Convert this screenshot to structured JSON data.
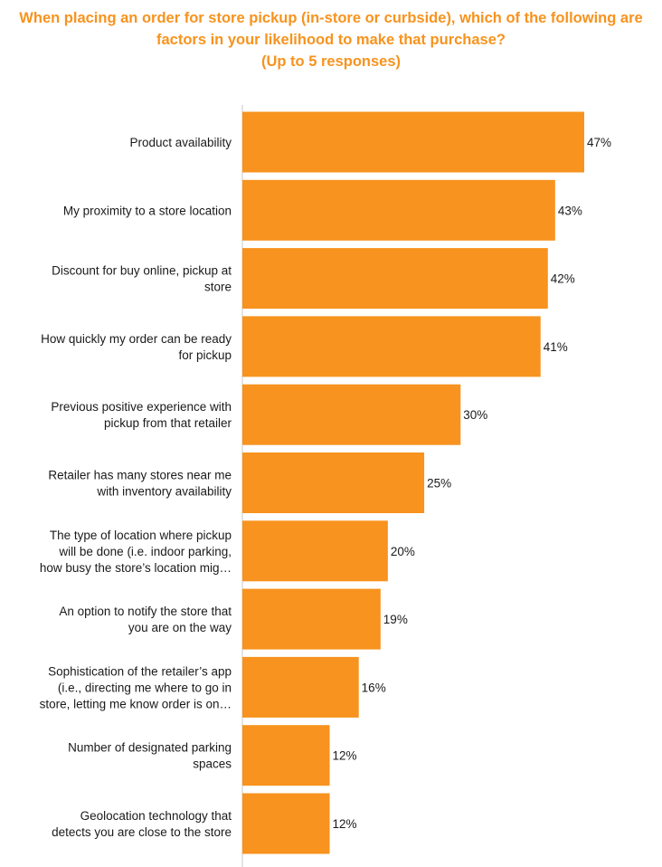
{
  "chart_data": {
    "type": "bar",
    "orientation": "horizontal",
    "title_lines": [
      "When placing an order for store pickup (in-store or curbside), which of the following are",
      "factors in your likelihood to make that purchase?",
      "(Up to 5 responses)"
    ],
    "categories": [
      [
        "Product availability"
      ],
      [
        "My proximity to a store location"
      ],
      [
        "Discount for buy online, pickup at",
        "store"
      ],
      [
        "How quickly my order can be ready",
        "for pickup"
      ],
      [
        "Previous positive experience with",
        "pickup from that retailer"
      ],
      [
        "Retailer has many stores near me",
        "with inventory availability"
      ],
      [
        "The type of location where pickup",
        "will be done (i.e. indoor parking,",
        "how busy the store’s location mig…"
      ],
      [
        "An option to notify the store that",
        "you are on the way"
      ],
      [
        "Sophistication of the retailer’s app",
        "(i.e., directing me where to go in",
        "store, letting me know order is on…"
      ],
      [
        "Number of designated parking",
        "spaces"
      ],
      [
        "Geolocation technology that",
        "detects you are close to the store"
      ]
    ],
    "values": [
      47,
      43,
      42,
      41,
      30,
      25,
      20,
      19,
      16,
      12,
      12
    ],
    "value_labels": [
      "47%",
      "43%",
      "42%",
      "41%",
      "30%",
      "25%",
      "20%",
      "19%",
      "16%",
      "12%",
      "12%"
    ],
    "unit": "%",
    "xlim": [
      0,
      50
    ],
    "bar_color": "#F7931E",
    "title_color": "#F7931E",
    "grid": false,
    "legend": "none"
  }
}
